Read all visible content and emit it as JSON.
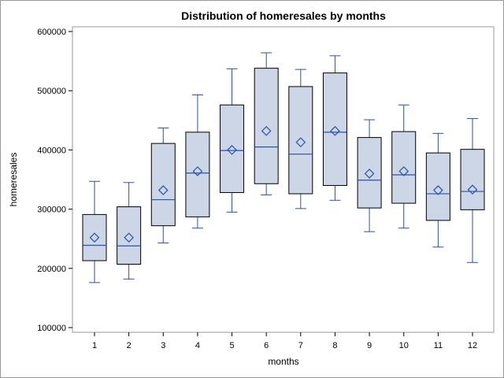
{
  "chart_data": {
    "type": "box",
    "title": "Distribution of homeresales by months",
    "xlabel": "months",
    "ylabel": "homeresales",
    "ylim": [
      100000,
      600000
    ],
    "yticks": [
      "100000",
      "200000",
      "300000",
      "400000",
      "500000",
      "600000"
    ],
    "categories": [
      "1",
      "2",
      "3",
      "4",
      "5",
      "6",
      "7",
      "8",
      "9",
      "10",
      "11",
      "12"
    ],
    "boxes": [
      {
        "min": 176000,
        "q1": 213000,
        "median": 239000,
        "q3": 291000,
        "max": 347000,
        "mean": 252000
      },
      {
        "min": 182000,
        "q1": 207000,
        "median": 238000,
        "q3": 304000,
        "max": 345000,
        "mean": 252000
      },
      {
        "min": 243000,
        "q1": 272000,
        "median": 316000,
        "q3": 411000,
        "max": 437000,
        "mean": 332000
      },
      {
        "min": 268000,
        "q1": 287000,
        "median": 361000,
        "q3": 430000,
        "max": 493000,
        "mean": 364000
      },
      {
        "min": 295000,
        "q1": 328000,
        "median": 399000,
        "q3": 476000,
        "max": 537000,
        "mean": 400000
      },
      {
        "min": 324000,
        "q1": 343000,
        "median": 405000,
        "q3": 538000,
        "max": 564000,
        "mean": 432000
      },
      {
        "min": 301000,
        "q1": 326000,
        "median": 393000,
        "q3": 507000,
        "max": 536000,
        "mean": 413000
      },
      {
        "min": 315000,
        "q1": 340000,
        "median": 430000,
        "q3": 530000,
        "max": 559000,
        "mean": 432000
      },
      {
        "min": 262000,
        "q1": 302000,
        "median": 349000,
        "q3": 421000,
        "max": 451000,
        "mean": 360000
      },
      {
        "min": 268000,
        "q1": 310000,
        "median": 358000,
        "q3": 431000,
        "max": 476000,
        "mean": 364000
      },
      {
        "min": 236000,
        "q1": 281000,
        "median": 326000,
        "q3": 395000,
        "max": 428000,
        "mean": 332000
      },
      {
        "min": 210000,
        "q1": 299000,
        "median": 330000,
        "q3": 401000,
        "max": 453000,
        "mean": 333000
      }
    ],
    "colors": {
      "box_fill": "#ccd6e6",
      "box_stroke": "#000000",
      "whisker": "#2a52a8",
      "median": "#2a52a8",
      "mean_marker": "#2a52a8",
      "frame": "#999999"
    }
  }
}
